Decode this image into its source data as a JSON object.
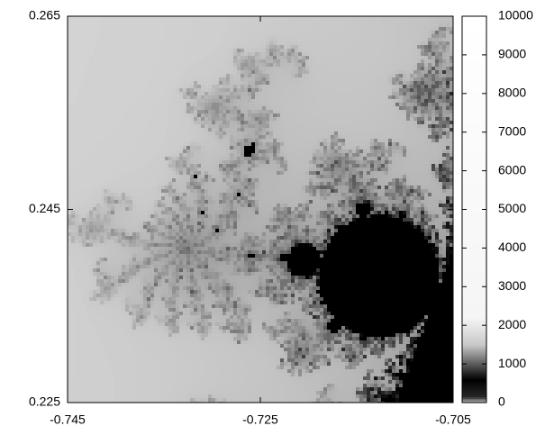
{
  "chart_data": {
    "type": "heatmap",
    "xlim": [
      -0.745,
      -0.705
    ],
    "xticks": [
      -0.745,
      -0.725,
      -0.705
    ],
    "ylim": [
      0.225,
      0.265
    ],
    "yticks": [
      0.225,
      0.245,
      0.265
    ],
    "clim": [
      0,
      10000
    ],
    "colorbar_ticks": [
      0,
      1000,
      2000,
      3000,
      4000,
      5000,
      6000,
      7000,
      8000,
      9000,
      10000
    ],
    "colormap": "gray"
  }
}
